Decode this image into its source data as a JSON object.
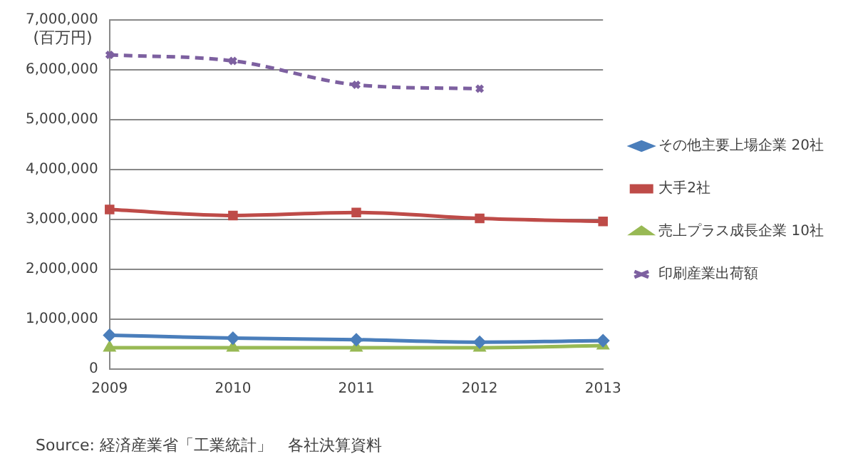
{
  "chart_data": {
    "type": "line",
    "ylabel": "(百万円)",
    "categories": [
      "2009",
      "2010",
      "2011",
      "2012",
      "2013"
    ],
    "series": [
      {
        "name": "その他主要上場企業 20社",
        "color": "#4a7ebb",
        "marker": "diamond",
        "values": [
          680000,
          620000,
          590000,
          540000,
          570000
        ]
      },
      {
        "name": "大手2社",
        "color": "#be4b48",
        "marker": "square",
        "values": [
          3200000,
          3080000,
          3140000,
          3020000,
          2960000
        ]
      },
      {
        "name": "売上プラス成長企業 10社",
        "color": "#98b954",
        "marker": "triangle",
        "values": [
          430000,
          430000,
          430000,
          430000,
          470000
        ]
      },
      {
        "name": "印刷産業出荷額",
        "color": "#7d60a0",
        "marker": "cross",
        "line_style": "dashed",
        "values": [
          6300000,
          6180000,
          5700000,
          5620000,
          null
        ]
      }
    ],
    "ylim": [
      0,
      7000000
    ],
    "yticks": [
      0,
      {
        "value": 1000000,
        "label": "1,000,000"
      },
      {
        "value": 2000000,
        "label": "2,000,000"
      },
      {
        "value": 3000000,
        "label": "3,000,000"
      },
      {
        "value": 4000000,
        "label": "4,000,000"
      },
      {
        "value": 5000000,
        "label": "5,000,000"
      },
      {
        "value": 6000000,
        "label": "6,000,000"
      },
      {
        "value": 7000000,
        "label": "7,000,000"
      }
    ],
    "grid": "y",
    "legend": "right",
    "annotations": [
      "Source: 経済産業省「工業統計」　各社決算資料"
    ]
  }
}
